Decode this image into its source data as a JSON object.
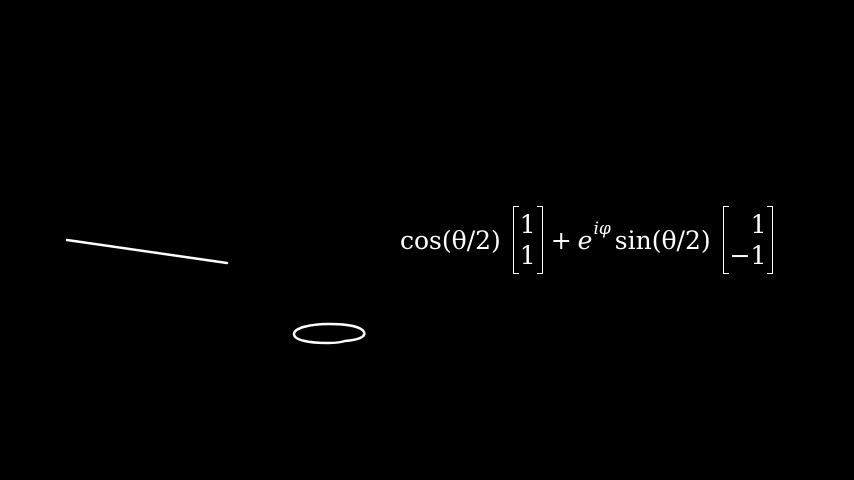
{
  "canvas": {
    "background": "#000000",
    "stroke_color": "#ffffff"
  },
  "formula": {
    "cos": "cos",
    "theta_half_1": "(θ/2)",
    "vector_1": [
      "1",
      "1"
    ],
    "plus": "+",
    "e": "e",
    "exponent": "iφ",
    "sin": "sin",
    "theta_half_2": "(θ/2)",
    "vector_2": [
      "1",
      "−1"
    ]
  }
}
